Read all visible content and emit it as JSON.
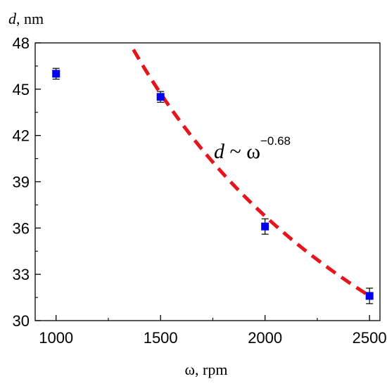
{
  "chart_data": {
    "type": "scatter",
    "xlabel_var": "ω",
    "xlabel_unit": ", rpm",
    "ylabel_var": "d",
    "ylabel_unit": ", nm",
    "xlim": [
      900,
      2550
    ],
    "ylim": [
      30,
      48
    ],
    "x_ticks": [
      1000,
      1500,
      2000,
      2500
    ],
    "y_ticks": [
      30,
      33,
      36,
      39,
      42,
      45,
      48
    ],
    "series": [
      {
        "marker_color": "#0000ee",
        "points": [
          {
            "x": 1000,
            "y": 46.0,
            "err": 0.35
          },
          {
            "x": 1500,
            "y": 44.5,
            "err": 0.35
          },
          {
            "x": 2000,
            "y": 36.1,
            "err": 0.5
          },
          {
            "x": 2500,
            "y": 31.6,
            "err": 0.5
          }
        ]
      }
    ],
    "fit": {
      "style": "dashed",
      "color": "#e8141b",
      "exponent": -0.68,
      "x_range": [
        1370,
        2500
      ],
      "anchor": {
        "x": 2500,
        "y": 31.6
      }
    },
    "annotation": {
      "var": "d",
      "relation": " ~ ω",
      "exponent": "−0.68"
    }
  }
}
